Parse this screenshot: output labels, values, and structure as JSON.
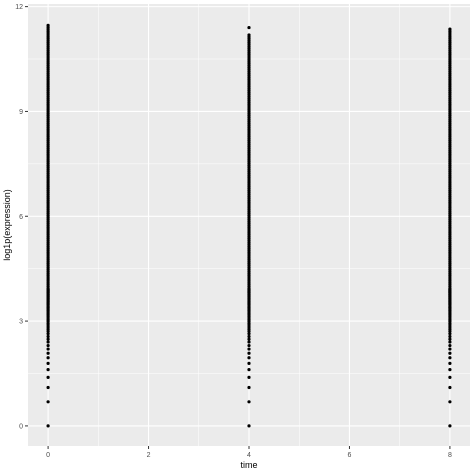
{
  "chart_data": {
    "type": "scatter",
    "title": "",
    "xlabel": "time",
    "ylabel": "log1p(expression)",
    "xlim": [
      -0.4,
      8.4
    ],
    "ylim": [
      -0.575,
      12.075
    ],
    "x_ticks": [
      0,
      2,
      4,
      6,
      8
    ],
    "y_ticks": [
      0,
      3,
      6,
      9,
      12
    ],
    "grid": true,
    "legend": "none",
    "panel_background": "#ebebeb",
    "grid_color": "#ffffff",
    "point_color": "#000000",
    "series": [
      {
        "x": 0,
        "values": [
          0,
          0.69,
          1.1,
          1.39,
          1.61,
          1.79,
          1.95,
          2.08,
          2.2,
          2.3,
          2.4,
          2.48,
          2.56,
          2.64,
          2.71,
          2.77,
          2.83,
          2.89,
          2.94,
          3.0,
          3.04,
          3.09,
          3.14,
          3.18,
          3.22,
          3.26,
          3.3,
          3.33,
          3.37,
          3.4,
          3.43,
          3.47,
          3.5,
          3.53,
          3.56,
          3.58,
          3.61,
          3.64,
          3.66,
          3.69,
          3.71,
          3.74,
          3.76,
          3.78,
          3.81,
          3.83,
          3.85,
          3.87,
          3.89,
          3.91,
          3.93
        ],
        "range_top": 11.5
      },
      {
        "x": 4,
        "values": [
          0,
          0.69,
          1.1,
          1.39,
          1.61,
          1.79,
          1.95,
          2.08,
          2.2,
          2.3,
          2.4,
          2.48,
          2.56,
          2.64,
          2.71,
          2.77,
          2.83,
          2.89,
          2.94,
          3.0,
          3.04,
          3.09,
          3.14,
          3.18,
          3.22,
          3.26,
          3.3,
          3.33,
          3.37,
          3.4,
          3.43,
          3.47,
          3.5,
          3.53,
          3.56,
          3.58,
          3.61,
          3.64,
          3.66,
          3.69,
          3.71,
          3.74,
          3.76,
          3.78,
          3.81,
          3.83,
          3.85,
          3.87,
          3.89,
          3.91,
          3.93
        ],
        "range_top": 11.2,
        "outliers": [
          11.4
        ]
      },
      {
        "x": 8,
        "values": [
          0,
          0.69,
          1.1,
          1.39,
          1.61,
          1.79,
          1.95,
          2.08,
          2.2,
          2.3,
          2.4,
          2.48,
          2.56,
          2.64,
          2.71,
          2.77,
          2.83,
          2.89,
          2.94,
          3.0,
          3.04,
          3.09,
          3.14,
          3.18,
          3.22,
          3.26,
          3.3,
          3.33,
          3.37,
          3.4,
          3.43,
          3.47,
          3.5,
          3.53,
          3.56,
          3.58,
          3.61,
          3.64,
          3.66,
          3.69,
          3.71,
          3.74,
          3.76,
          3.78,
          3.81,
          3.83,
          3.85,
          3.87,
          3.89,
          3.91,
          3.93
        ],
        "range_top": 11.4
      }
    ]
  }
}
